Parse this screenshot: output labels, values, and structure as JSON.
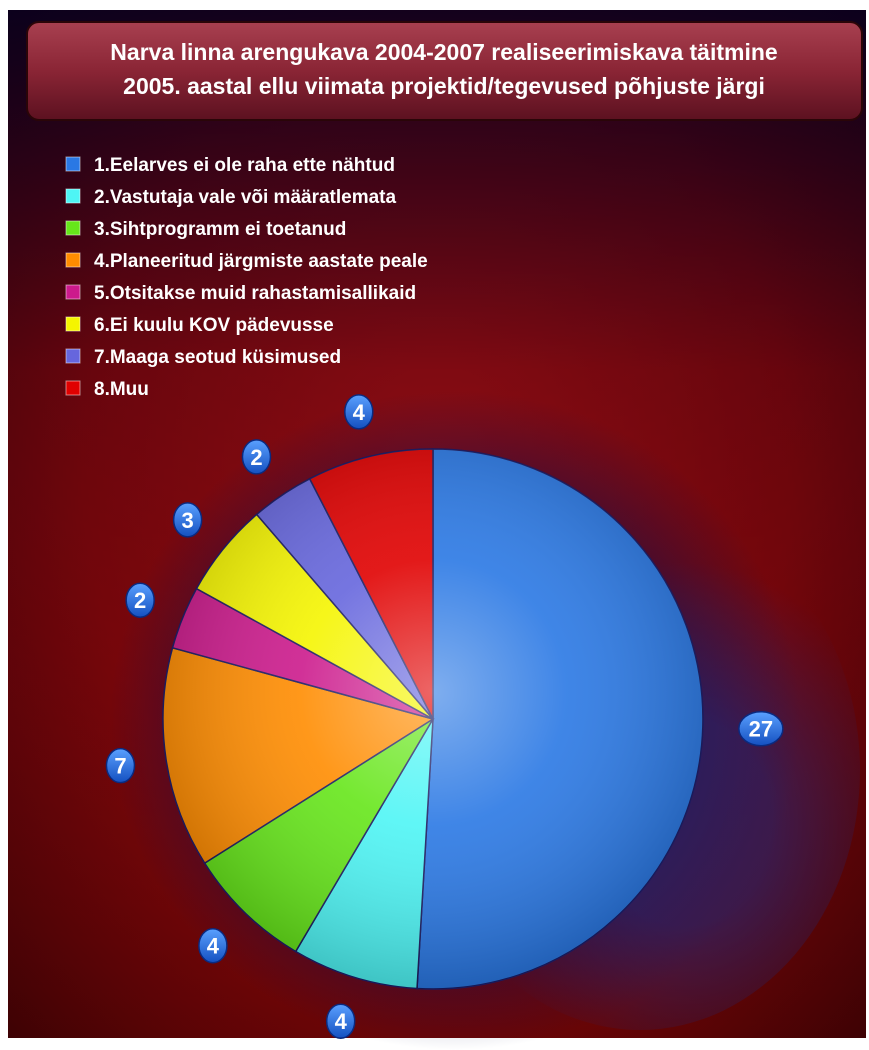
{
  "chart_data": {
    "type": "pie",
    "title": "Narva linna arengukava 2004-2007 realiseerimiskava täitmine",
    "subtitle": "2005. aastal ellu viimata projektid/tegevused põhjuste järgi",
    "categories": [
      "1.Eelarves ei ole raha ette nähtud",
      "2.Vastutaja vale või määratlemata",
      "3.Sihtprogramm ei toetanud",
      "4.Planeeritud järgmiste aastate peale",
      "5.Otsitakse muid rahastamisallikaid",
      "6.Ei kuulu KOV pädevusse",
      "7.Maaga seotud küsimused",
      "8.Muu"
    ],
    "values": [
      27,
      4,
      4,
      7,
      2,
      3,
      2,
      4
    ],
    "value_labels": [
      "27",
      "4",
      "4",
      "7",
      "2",
      "3",
      "2",
      "4"
    ],
    "colors": [
      "#2a78e4",
      "#4ef5f5",
      "#66e61a",
      "#ff8c00",
      "#cc1a8c",
      "#f5f500",
      "#6666dd",
      "#e00000"
    ],
    "start_angle": "12 o'clock",
    "direction": "clockwise",
    "legend_position": "top-left"
  }
}
